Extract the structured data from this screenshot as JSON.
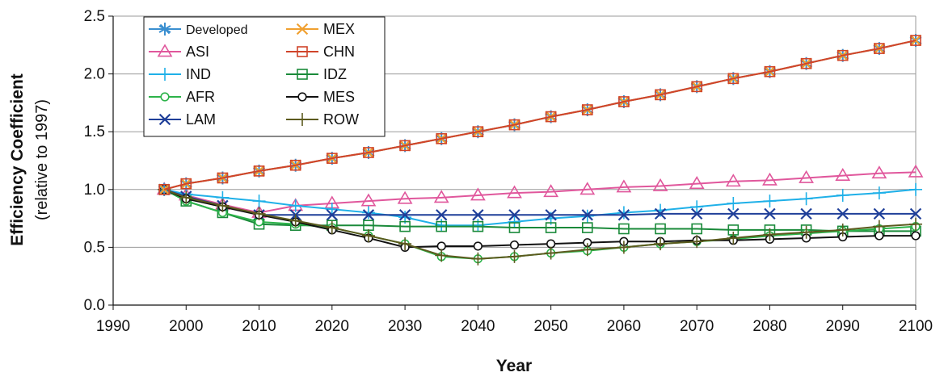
{
  "chart_data": {
    "type": "line",
    "xlabel": "Year",
    "ylabel": "Efficiency Coefficient",
    "ylabel_sub": "(relative to 1997)",
    "xlim": [
      1990,
      2100
    ],
    "ylim": [
      0.0,
      2.5
    ],
    "x_ticks": [
      1990,
      2000,
      2010,
      2020,
      2030,
      2040,
      2050,
      2060,
      2070,
      2080,
      2090,
      2100
    ],
    "y_ticks": [
      "0.0",
      "0.5",
      "1.0",
      "1.5",
      "2.0",
      "2.5"
    ],
    "grid": "horizontal",
    "legend_position": "top-left",
    "x": [
      1997,
      2000,
      2005,
      2010,
      2015,
      2020,
      2025,
      2030,
      2035,
      2040,
      2045,
      2050,
      2055,
      2060,
      2065,
      2070,
      2075,
      2080,
      2085,
      2090,
      2095,
      2100
    ],
    "series": [
      {
        "name": "Developed",
        "color": "#3a8fd0",
        "marker": "asterisk",
        "values": [
          1.0,
          1.05,
          1.1,
          1.16,
          1.21,
          1.27,
          1.32,
          1.38,
          1.44,
          1.5,
          1.56,
          1.63,
          1.69,
          1.76,
          1.82,
          1.89,
          1.96,
          2.02,
          2.09,
          2.16,
          2.22,
          2.29
        ]
      },
      {
        "name": "MEX",
        "color": "#f0a030",
        "marker": "x",
        "values": [
          1.0,
          1.05,
          1.1,
          1.16,
          1.21,
          1.27,
          1.32,
          1.38,
          1.44,
          1.5,
          1.56,
          1.63,
          1.69,
          1.76,
          1.82,
          1.89,
          1.96,
          2.02,
          2.09,
          2.16,
          2.22,
          2.29
        ]
      },
      {
        "name": "ASI",
        "color": "#e0579c",
        "marker": "triangle",
        "values": [
          1.0,
          0.95,
          0.87,
          0.8,
          0.86,
          0.88,
          0.9,
          0.92,
          0.93,
          0.95,
          0.97,
          0.98,
          1.0,
          1.02,
          1.03,
          1.05,
          1.07,
          1.08,
          1.1,
          1.12,
          1.14,
          1.15
        ]
      },
      {
        "name": "CHN",
        "color": "#d0442a",
        "marker": "square",
        "values": [
          1.0,
          1.05,
          1.1,
          1.16,
          1.21,
          1.27,
          1.32,
          1.38,
          1.44,
          1.5,
          1.56,
          1.63,
          1.69,
          1.76,
          1.82,
          1.89,
          1.96,
          2.02,
          2.09,
          2.16,
          2.22,
          2.29
        ]
      },
      {
        "name": "IND",
        "color": "#1fb0e8",
        "marker": "plus",
        "values": [
          1.0,
          0.96,
          0.93,
          0.9,
          0.86,
          0.83,
          0.8,
          0.76,
          0.69,
          0.69,
          0.72,
          0.75,
          0.77,
          0.8,
          0.82,
          0.85,
          0.88,
          0.9,
          0.92,
          0.95,
          0.97,
          1.0
        ]
      },
      {
        "name": "IDZ",
        "color": "#1a8a3a",
        "marker": "square",
        "values": [
          1.0,
          0.9,
          0.8,
          0.7,
          0.69,
          0.69,
          0.69,
          0.68,
          0.68,
          0.68,
          0.67,
          0.67,
          0.67,
          0.66,
          0.66,
          0.66,
          0.65,
          0.65,
          0.65,
          0.64,
          0.64,
          0.64
        ]
      },
      {
        "name": "AFR",
        "color": "#2db34a",
        "marker": "circle",
        "values": [
          1.0,
          0.9,
          0.8,
          0.72,
          0.7,
          0.67,
          0.6,
          0.53,
          0.42,
          0.4,
          0.42,
          0.45,
          0.47,
          0.5,
          0.53,
          0.55,
          0.57,
          0.6,
          0.62,
          0.64,
          0.66,
          0.68
        ]
      },
      {
        "name": "MES",
        "color": "#111111",
        "marker": "circle",
        "values": [
          1.0,
          0.92,
          0.85,
          0.78,
          0.72,
          0.65,
          0.58,
          0.5,
          0.51,
          0.51,
          0.52,
          0.53,
          0.54,
          0.55,
          0.55,
          0.56,
          0.56,
          0.57,
          0.58,
          0.59,
          0.6,
          0.6
        ]
      },
      {
        "name": "LAM",
        "color": "#1f3f99",
        "marker": "x",
        "values": [
          1.0,
          0.94,
          0.86,
          0.78,
          0.78,
          0.78,
          0.78,
          0.78,
          0.78,
          0.78,
          0.78,
          0.78,
          0.78,
          0.78,
          0.79,
          0.79,
          0.79,
          0.79,
          0.79,
          0.79,
          0.79,
          0.79
        ]
      },
      {
        "name": "ROW",
        "color": "#5c5a1e",
        "marker": "plus",
        "values": [
          1.0,
          0.93,
          0.86,
          0.79,
          0.73,
          0.67,
          0.6,
          0.53,
          0.43,
          0.4,
          0.42,
          0.45,
          0.48,
          0.5,
          0.53,
          0.55,
          0.58,
          0.61,
          0.63,
          0.65,
          0.68,
          0.7
        ]
      }
    ],
    "legend_order": [
      "Developed",
      "MEX",
      "ASI",
      "CHN",
      "IND",
      "IDZ",
      "AFR",
      "MES",
      "LAM",
      "ROW"
    ]
  }
}
